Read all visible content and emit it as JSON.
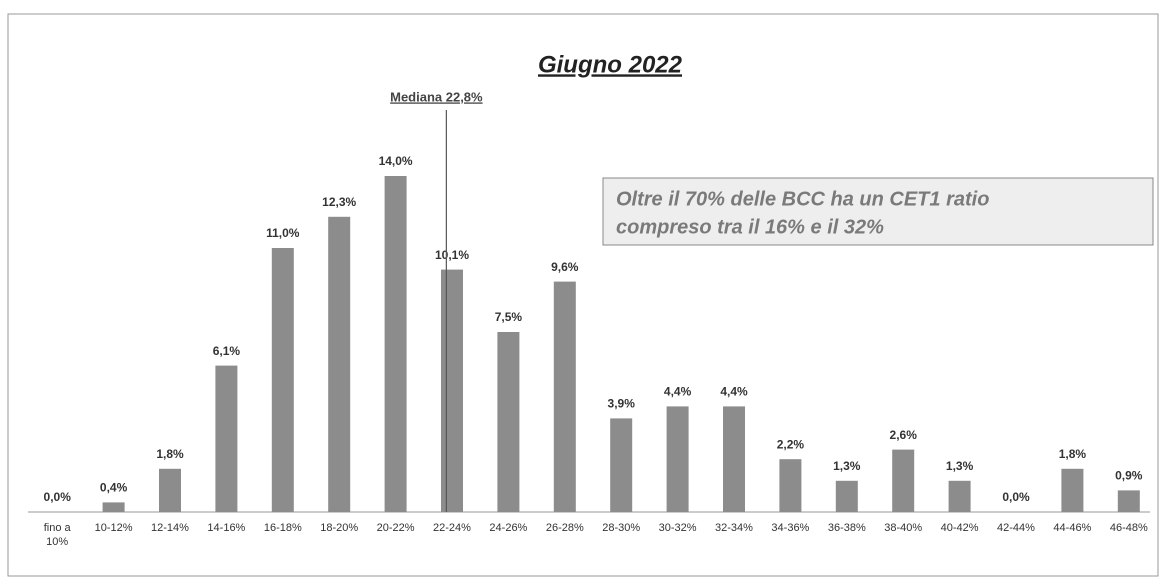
{
  "chart_data": {
    "type": "bar",
    "title": "Giugno 2022",
    "categories": [
      "fino a 10%",
      "10-12%",
      "12-14%",
      "14-16%",
      "16-18%",
      "18-20%",
      "20-22%",
      "22-24%",
      "24-26%",
      "26-28%",
      "28-30%",
      "30-32%",
      "32-34%",
      "34-36%",
      "36-38%",
      "38-40%",
      "40-42%",
      "42-44%",
      "44-46%",
      "46-48%"
    ],
    "values": [
      0.0,
      0.4,
      1.8,
      6.1,
      11.0,
      12.3,
      14.0,
      10.1,
      7.5,
      9.6,
      3.9,
      4.4,
      4.4,
      2.2,
      1.3,
      2.6,
      1.3,
      0.0,
      1.8,
      0.9
    ],
    "value_labels": [
      "0,0%",
      "0,4%",
      "1,8%",
      "6,1%",
      "11,0%",
      "12,3%",
      "14,0%",
      "10,1%",
      "7,5%",
      "9,6%",
      "3,9%",
      "4,4%",
      "4,4%",
      "2,2%",
      "1,3%",
      "2,6%",
      "1,3%",
      "0,0%",
      "1,8%",
      "0,9%"
    ],
    "color": "#8c8c8c",
    "median": {
      "text": "Mediana 22,8%",
      "value": 22.8
    },
    "note": [
      "Oltre il 70% delle BCC ha un  CET1 ratio",
      "compreso tra il 16% e il 32%"
    ]
  }
}
